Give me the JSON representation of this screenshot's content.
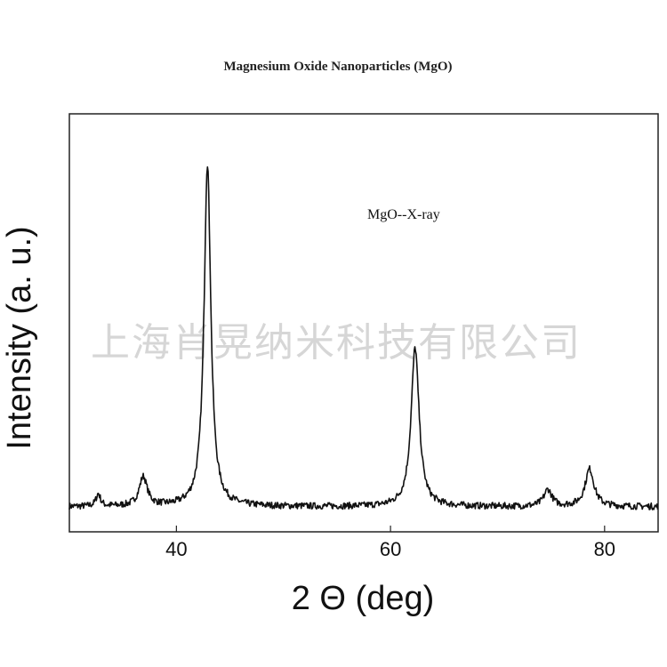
{
  "chart_data": {
    "type": "line",
    "title": "Magnesium Oxide Nanoparticles (MgO)",
    "xlabel": "2 Θ (deg)",
    "ylabel": "Intensity (a. u.)",
    "xlim": [
      30,
      85
    ],
    "ylim": [
      0,
      100
    ],
    "xticks": [
      40,
      60,
      80
    ],
    "yticks_shown": false,
    "grid": false,
    "annotation": "MgO--X-ray",
    "baseline": 6,
    "peaks": [
      {
        "x": 32.7,
        "height": 3,
        "width": 0.25
      },
      {
        "x": 36.9,
        "height": 7,
        "width": 0.45
      },
      {
        "x": 42.9,
        "height": 82,
        "width": 0.38
      },
      {
        "x": 62.3,
        "height": 38,
        "width": 0.45
      },
      {
        "x": 74.7,
        "height": 4,
        "width": 0.45
      },
      {
        "x": 78.6,
        "height": 9,
        "width": 0.5
      }
    ],
    "series": [
      {
        "values_description_only": false
      }
    ]
  },
  "watermark": "上海肖晃纳米科技有限公司"
}
